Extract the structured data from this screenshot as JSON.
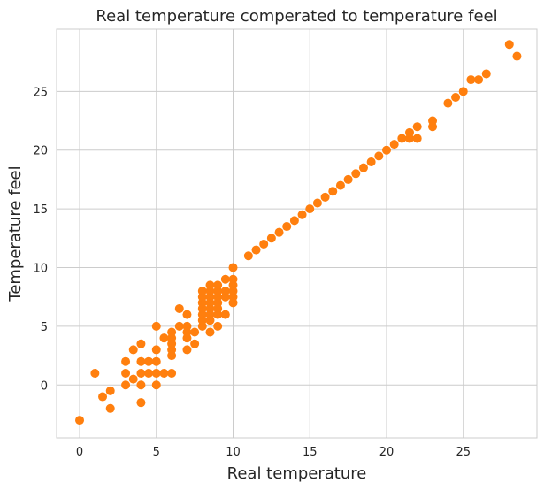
{
  "chart_data": {
    "type": "scatter",
    "title": "Real temperature comperated to temperature feel",
    "xlabel": "Real temperature",
    "ylabel": "Temperature feel",
    "xlim": [
      -1.5,
      29.8
    ],
    "ylim": [
      -4.5,
      30.3
    ],
    "xticks": [
      0,
      5,
      10,
      15,
      20,
      25
    ],
    "yticks": [
      0,
      5,
      10,
      15,
      20,
      25
    ],
    "grid": true,
    "color": "#ff7f0e",
    "points": [
      [
        0,
        -3
      ],
      [
        1,
        1
      ],
      [
        1.5,
        -1
      ],
      [
        2,
        -0.5
      ],
      [
        2,
        -2
      ],
      [
        3,
        0
      ],
      [
        3,
        1
      ],
      [
        3,
        2
      ],
      [
        3.5,
        0.5
      ],
      [
        3.5,
        3
      ],
      [
        4,
        -1.5
      ],
      [
        4,
        0
      ],
      [
        4,
        1
      ],
      [
        4,
        2
      ],
      [
        4,
        3.5
      ],
      [
        4.5,
        1
      ],
      [
        4.5,
        2
      ],
      [
        5,
        0
      ],
      [
        5,
        1
      ],
      [
        5,
        2
      ],
      [
        5,
        3
      ],
      [
        5,
        5
      ],
      [
        5.5,
        1
      ],
      [
        5.5,
        4
      ],
      [
        6,
        1
      ],
      [
        6,
        2.5
      ],
      [
        6,
        3
      ],
      [
        6,
        3.5
      ],
      [
        6,
        4
      ],
      [
        6,
        4.5
      ],
      [
        6.5,
        5
      ],
      [
        6.5,
        6.5
      ],
      [
        7,
        3
      ],
      [
        7,
        4
      ],
      [
        7,
        4.5
      ],
      [
        7,
        5
      ],
      [
        7,
        6
      ],
      [
        7.5,
        3.5
      ],
      [
        7.5,
        4.5
      ],
      [
        8,
        5
      ],
      [
        8,
        5.5
      ],
      [
        8,
        6
      ],
      [
        8,
        6.5
      ],
      [
        8,
        7
      ],
      [
        8,
        7.5
      ],
      [
        8,
        8
      ],
      [
        8.5,
        4.5
      ],
      [
        8.5,
        5.5
      ],
      [
        8.5,
        6
      ],
      [
        8.5,
        6.5
      ],
      [
        8.5,
        7
      ],
      [
        8.5,
        7.5
      ],
      [
        8.5,
        8
      ],
      [
        8.5,
        8.5
      ],
      [
        9,
        5
      ],
      [
        9,
        6
      ],
      [
        9,
        6.5
      ],
      [
        9,
        7
      ],
      [
        9,
        7.5
      ],
      [
        9,
        8
      ],
      [
        9,
        8.5
      ],
      [
        9.5,
        6
      ],
      [
        9.5,
        7.5
      ],
      [
        9.5,
        8
      ],
      [
        9.5,
        9
      ],
      [
        10,
        7
      ],
      [
        10,
        7.5
      ],
      [
        10,
        8
      ],
      [
        10,
        8.5
      ],
      [
        10,
        9
      ],
      [
        10,
        10
      ],
      [
        11,
        11
      ],
      [
        11.5,
        11.5
      ],
      [
        12,
        12
      ],
      [
        12.5,
        12.5
      ],
      [
        13,
        13
      ],
      [
        13.5,
        13.5
      ],
      [
        14,
        14
      ],
      [
        14.5,
        14.5
      ],
      [
        15,
        15
      ],
      [
        15.5,
        15.5
      ],
      [
        16,
        16
      ],
      [
        16.5,
        16.5
      ],
      [
        17,
        17
      ],
      [
        17.5,
        17.5
      ],
      [
        18,
        18
      ],
      [
        18.5,
        18.5
      ],
      [
        19,
        19
      ],
      [
        19.5,
        19.5
      ],
      [
        20,
        20
      ],
      [
        20.5,
        20.5
      ],
      [
        21,
        21
      ],
      [
        21.5,
        21
      ],
      [
        21.5,
        21.5
      ],
      [
        22,
        21
      ],
      [
        22,
        22
      ],
      [
        23,
        22
      ],
      [
        23,
        22.5
      ],
      [
        24,
        24
      ],
      [
        24.5,
        24.5
      ],
      [
        25,
        25
      ],
      [
        25.5,
        26
      ],
      [
        26,
        26
      ],
      [
        26.5,
        26.5
      ],
      [
        28,
        29
      ],
      [
        28.5,
        28
      ]
    ]
  }
}
